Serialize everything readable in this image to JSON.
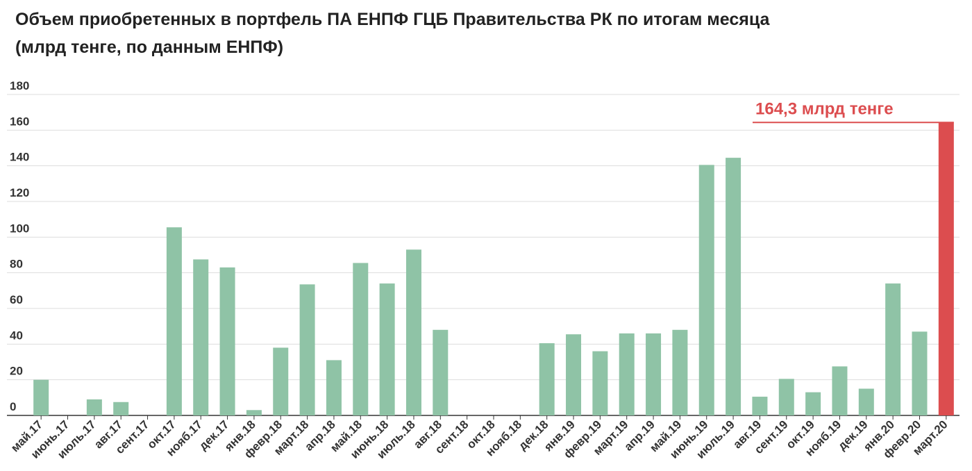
{
  "title_line1": "Объем приобретенных в портфель ПА ЕНПФ ГЦБ Правительства РК по итогам месяца",
  "title_line2": "(млрд тенге, по данным ЕНПФ)",
  "chart_data": {
    "type": "bar",
    "title": "Объем приобретенных в портфель ПА ЕНПФ ГЦБ Правительства РК по итогам месяца (млрд тенге, по данным ЕНПФ)",
    "categories": [
      "май.17",
      "июнь.17",
      "июль.17",
      "авг.17",
      "сент.17",
      "окт.17",
      "нояб.17",
      "дек.17",
      "янв.18",
      "февр.18",
      "март.18",
      "апр.18",
      "май.18",
      "июнь.18",
      "июль.18",
      "авг.18",
      "сент.18",
      "окт.18",
      "нояб.18",
      "дек.18",
      "янв.19",
      "февр.19",
      "март.19",
      "апр.19",
      "май.19",
      "июнь.19",
      "июль.19",
      "авг.19",
      "сент.19",
      "окт.19",
      "нояб.19",
      "дек.19",
      "янв.20",
      "февр.20",
      "март.20"
    ],
    "values": [
      20,
      0,
      9,
      7.5,
      0,
      105.5,
      87.5,
      83,
      3,
      38,
      73.5,
      31,
      85.5,
      74,
      93,
      48,
      0,
      0,
      0,
      40.5,
      45.5,
      36,
      46,
      46,
      48,
      140.5,
      144.5,
      10.5,
      20.5,
      13,
      27.5,
      15,
      74,
      47,
      164.3
    ],
    "ylim": [
      0,
      180
    ],
    "yticks": [
      0,
      20,
      40,
      60,
      80,
      100,
      120,
      140,
      160,
      180
    ],
    "grid": true,
    "xlabel": "",
    "ylabel": "",
    "colors": {
      "bar": "#8fc3a6",
      "highlight": "#dc4d4f",
      "grid": "#dddddd",
      "axis": "#333333"
    },
    "highlight_index": 34,
    "annotation": "164,3 млрд тенге"
  }
}
